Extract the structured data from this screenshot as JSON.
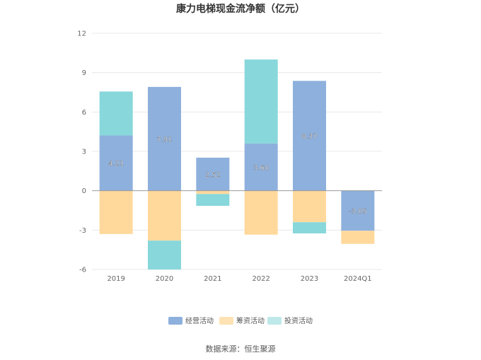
{
  "chart_data": {
    "type": "bar",
    "stacked": true,
    "title": "康力电梯现金流净额（亿元）",
    "categories": [
      "2019",
      "2020",
      "2021",
      "2022",
      "2023",
      "2024Q1"
    ],
    "series": [
      {
        "name": "经营活动",
        "color": "#8eb0dd",
        "values": [
          4.21,
          7.91,
          2.52,
          3.6,
          8.37,
          -3.05
        ],
        "labeled": true
      },
      {
        "name": "筹资活动",
        "color": "#ffd99c",
        "values": [
          -3.3,
          -3.8,
          -0.25,
          -3.35,
          -2.4,
          -1.0
        ],
        "labeled": false
      },
      {
        "name": "投资活动",
        "color": "#88d7db",
        "values": [
          3.35,
          -2.2,
          -0.9,
          6.4,
          -0.85,
          0
        ],
        "labeled": false
      }
    ],
    "yticks": [
      12,
      9,
      6,
      3,
      0,
      -3,
      -6
    ],
    "ylim": [
      -6,
      12
    ],
    "xlabel": "",
    "ylabel": "",
    "grid": true,
    "legend_position": "bottom"
  },
  "source_label": "数据来源：恒生聚源"
}
